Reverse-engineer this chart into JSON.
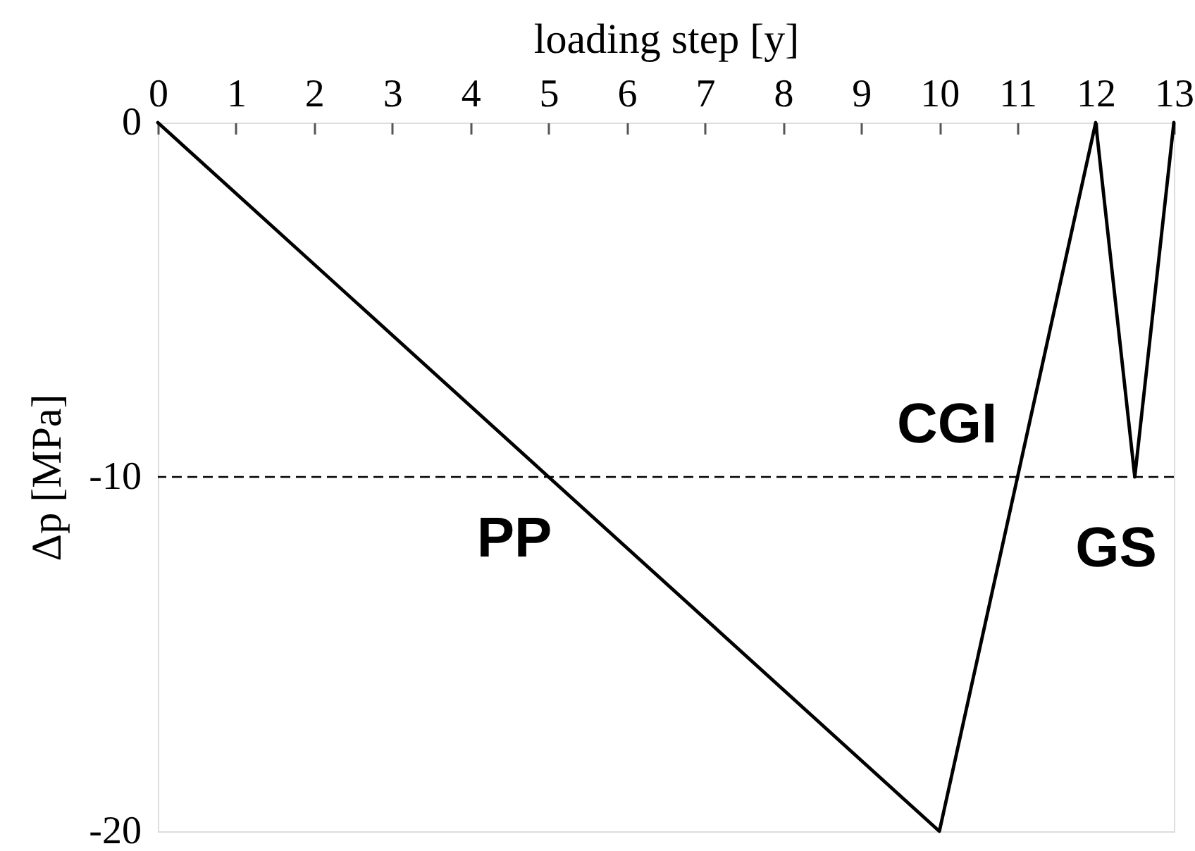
{
  "chart_data": {
    "type": "line",
    "xlabel": "loading step [y]",
    "ylabel": "Δp [MPa]",
    "x": [
      0,
      10,
      12,
      12.5,
      13
    ],
    "series": [
      {
        "color": "#000000",
        "values": [
          0,
          -20,
          0,
          -10,
          0
        ]
      }
    ],
    "xlim": [
      0,
      13
    ],
    "ylim": [
      -20,
      0
    ],
    "xticks": [
      0,
      1,
      2,
      3,
      4,
      5,
      6,
      7,
      8,
      9,
      10,
      11,
      12,
      13
    ],
    "yticks": [
      -20,
      -10,
      0
    ],
    "ref_lines": [
      {
        "axis": "y",
        "value": -10,
        "color": "#000000",
        "line_style": "dashed"
      }
    ],
    "annotations": [
      "PP",
      "CGI",
      "GS"
    ],
    "grid": false,
    "marker": "none",
    "line_style": "solid"
  }
}
